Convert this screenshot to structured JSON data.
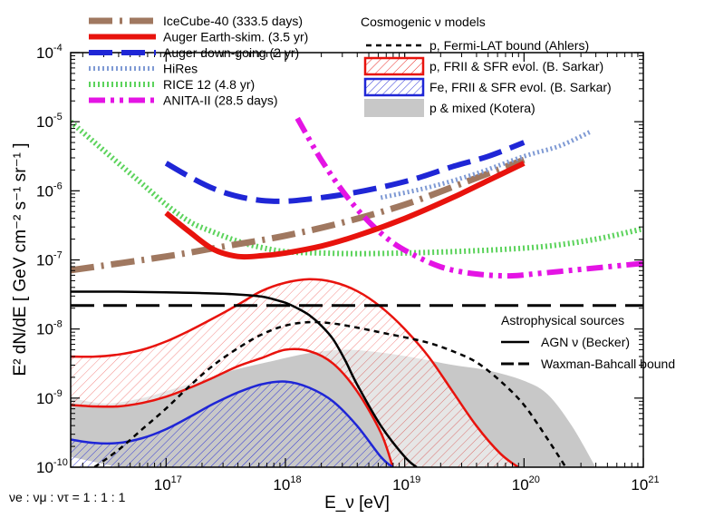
{
  "chart_data": {
    "type": "line",
    "title": "",
    "xlabel": "E_ν [eV]",
    "ylabel": "E² dN/dE  [ GeV cm⁻² s⁻¹ sr⁻¹ ]",
    "xscale": "log",
    "yscale": "log",
    "xlim_log10": [
      16.2,
      21.0
    ],
    "ylim_log10": [
      -10.0,
      -4.0
    ],
    "x_ticks": [
      {
        "exp": "17",
        "value_log10": 17
      },
      {
        "exp": "18",
        "value_log10": 18
      },
      {
        "exp": "19",
        "value_log10": 19
      },
      {
        "exp": "20",
        "value_log10": 20
      },
      {
        "exp": "21",
        "value_log10": 21
      }
    ],
    "y_ticks": [
      {
        "exp": "-10",
        "value_log10": -10
      },
      {
        "exp": "-9",
        "value_log10": -9
      },
      {
        "exp": "-8",
        "value_log10": -8
      },
      {
        "exp": "-7",
        "value_log10": -7
      },
      {
        "exp": "-6",
        "value_log10": -6
      },
      {
        "exp": "-5",
        "value_log10": -5
      },
      {
        "exp": "-4",
        "value_log10": -4
      }
    ],
    "tick_base": "10",
    "flavor_note": "νe : νμ : ντ = 1 : 1 : 1",
    "legend_headers": {
      "cosmogenic": "Cosmogenic ν models",
      "astrophysical": "Astrophysical sources"
    },
    "bands": [
      {
        "id": "kotera",
        "name": "p & mixed (Kotera)",
        "color": "#c8c8c8",
        "upper": {
          "log10_E": [
            16.2,
            16.5,
            16.8,
            17.0,
            17.3,
            17.6,
            17.9,
            18.2,
            18.5,
            18.8,
            19.1,
            19.4,
            19.7,
            20.0,
            20.2,
            20.4,
            20.6
          ],
          "log10_flux": [
            -9.0,
            -9.08,
            -9.0,
            -8.9,
            -8.74,
            -8.58,
            -8.46,
            -8.35,
            -8.3,
            -8.34,
            -8.42,
            -8.52,
            -8.6,
            -8.75,
            -8.95,
            -9.4,
            -10.0
          ]
        },
        "lower": {
          "log10_E": [
            16.2,
            16.6,
            17.0,
            17.4,
            17.8,
            18.2,
            18.5,
            18.8,
            19.1,
            19.3
          ],
          "log10_flux": [
            -9.85,
            -10.0,
            -10.0,
            -10.0,
            -10.0,
            -10.0,
            -10.0,
            -10.0,
            -10.0,
            -10.0
          ]
        }
      },
      {
        "id": "p-frii",
        "name": "p, FRII & SFR evol. (B. Sarkar)",
        "color": "#e8130d",
        "upper": {
          "log10_E": [
            16.2,
            16.4,
            16.6,
            16.8,
            17.0,
            17.2,
            17.4,
            17.6,
            17.8,
            18.0,
            18.2,
            18.4,
            18.6,
            18.8,
            19.0,
            19.2,
            19.4,
            19.6,
            19.8,
            19.95
          ],
          "log10_flux": [
            -8.4,
            -8.4,
            -8.37,
            -8.3,
            -8.18,
            -8.02,
            -7.84,
            -7.65,
            -7.45,
            -7.33,
            -7.28,
            -7.32,
            -7.45,
            -7.68,
            -8.0,
            -8.4,
            -8.9,
            -9.4,
            -9.8,
            -10.0
          ]
        },
        "lower": {
          "log10_E": [
            16.2,
            16.4,
            16.6,
            16.8,
            17.0,
            17.2,
            17.4,
            17.6,
            17.8,
            18.0,
            18.2,
            18.4,
            18.6,
            18.8,
            18.9
          ],
          "log10_flux": [
            -9.1,
            -9.12,
            -9.12,
            -9.07,
            -8.98,
            -8.85,
            -8.7,
            -8.54,
            -8.42,
            -8.3,
            -8.32,
            -8.5,
            -8.9,
            -9.5,
            -10.0
          ]
        }
      },
      {
        "id": "fe-frii",
        "name": "Fe, FRII & SFR evol. (B. Sarkar)",
        "color": "#1f26d6",
        "upper": {
          "log10_E": [
            16.2,
            16.4,
            16.6,
            16.8,
            17.0,
            17.2,
            17.4,
            17.6,
            17.8,
            18.0,
            18.2,
            18.4,
            18.6,
            18.8,
            18.9
          ],
          "log10_flux": [
            -9.6,
            -9.65,
            -9.65,
            -9.58,
            -9.45,
            -9.27,
            -9.08,
            -8.92,
            -8.8,
            -8.76,
            -8.85,
            -9.05,
            -9.4,
            -9.85,
            -10.0
          ]
        },
        "lower": {
          "log10_E": [
            16.2,
            18.9
          ],
          "log10_flux": [
            -10.0,
            -10.0
          ]
        }
      }
    ],
    "series": [
      {
        "id": "icecube40",
        "name": "IceCube-40 (333.5 days)",
        "color": "#a07860",
        "style": "dashdot",
        "width": 7,
        "log10_E": [
          16.2,
          17.0,
          17.5,
          18.0,
          18.5,
          19.0,
          19.5,
          20.0
        ],
        "log10_flux": [
          -7.15,
          -6.95,
          -6.8,
          -6.65,
          -6.45,
          -6.2,
          -5.88,
          -5.55
        ]
      },
      {
        "id": "auger-es",
        "name": "Auger Earth-skim. (3.5 yr)",
        "color": "#e8130d",
        "style": "solid",
        "width": 6,
        "log10_E": [
          17.0,
          17.2,
          17.4,
          17.6,
          17.8,
          18.0,
          18.3,
          18.6,
          19.0,
          19.4,
          19.7,
          20.0
        ],
        "log10_flux": [
          -6.32,
          -6.6,
          -6.85,
          -6.95,
          -6.94,
          -6.9,
          -6.8,
          -6.65,
          -6.4,
          -6.1,
          -5.85,
          -5.6
        ]
      },
      {
        "id": "auger-dg",
        "name": "Auger down-going (2 yr)",
        "color": "#1f26d6",
        "style": "longdash",
        "width": 6,
        "log10_E": [
          17.0,
          17.2,
          17.4,
          17.6,
          17.8,
          18.0,
          18.2,
          18.5,
          18.8,
          19.1,
          19.4,
          19.7,
          20.0
        ],
        "log10_flux": [
          -5.6,
          -5.8,
          -5.97,
          -6.08,
          -6.14,
          -6.15,
          -6.12,
          -6.05,
          -5.95,
          -5.82,
          -5.65,
          -5.5,
          -5.3
        ]
      },
      {
        "id": "hires",
        "name": "HiRes",
        "color": "#7f9ad4",
        "style": "dotted",
        "width": 5,
        "log10_E": [
          18.8,
          19.2,
          19.6,
          20.0,
          20.3,
          20.55
        ],
        "log10_flux": [
          -6.1,
          -5.95,
          -5.75,
          -5.5,
          -5.35,
          -5.15
        ]
      },
      {
        "id": "rice12",
        "name": "RICE 12 (4.8 yr)",
        "color": "#5cd35c",
        "style": "dotted",
        "width": 6,
        "log10_E": [
          16.2,
          16.4,
          16.6,
          16.8,
          17.0,
          17.2,
          17.4,
          17.6,
          17.8,
          18.0,
          18.3,
          18.6,
          19.0,
          19.4,
          19.8,
          20.2,
          20.6,
          21.0
        ],
        "log10_flux": [
          -5.0,
          -5.3,
          -5.6,
          -5.9,
          -6.2,
          -6.45,
          -6.6,
          -6.73,
          -6.82,
          -6.88,
          -6.9,
          -6.91,
          -6.9,
          -6.88,
          -6.85,
          -6.8,
          -6.7,
          -6.55
        ]
      },
      {
        "id": "anita2",
        "name": "ANITA-II (28.5 days)",
        "color": "#e414e4",
        "style": "dashdotdot",
        "width": 6,
        "log10_E": [
          18.1,
          18.3,
          18.5,
          18.7,
          18.9,
          19.1,
          19.3,
          19.5,
          19.7,
          19.9,
          20.1,
          20.4,
          20.7,
          21.0
        ],
        "log10_flux": [
          -4.95,
          -5.55,
          -6.05,
          -6.45,
          -6.75,
          -6.95,
          -7.1,
          -7.18,
          -7.22,
          -7.23,
          -7.2,
          -7.15,
          -7.1,
          -7.05
        ]
      },
      {
        "id": "ahlers",
        "name": "p, Fermi-LAT bound (Ahlers)",
        "color": "#000000",
        "style": "shortdash",
        "width": 2.5,
        "log10_E": [
          16.4,
          16.6,
          16.8,
          17.0,
          17.2,
          17.4,
          17.6,
          17.8,
          18.0,
          18.2,
          18.4,
          18.6,
          18.8,
          19.0,
          19.2,
          19.4,
          19.6,
          19.8,
          20.0,
          20.2,
          20.35
        ],
        "log10_flux": [
          -10.0,
          -9.75,
          -9.45,
          -9.15,
          -8.82,
          -8.52,
          -8.28,
          -8.08,
          -7.95,
          -7.9,
          -7.92,
          -7.98,
          -8.05,
          -8.12,
          -8.2,
          -8.32,
          -8.48,
          -8.75,
          -9.1,
          -9.6,
          -10.0
        ]
      },
      {
        "id": "agn-becker",
        "name": "AGN ν (Becker)",
        "color": "#000000",
        "style": "solid",
        "width": 2.5,
        "log10_E": [
          16.2,
          16.6,
          17.0,
          17.3,
          17.6,
          17.8,
          17.9,
          18.0,
          18.1,
          18.2,
          18.3,
          18.4,
          18.5,
          18.6,
          18.8,
          19.0,
          19.1
        ],
        "log10_flux": [
          -7.46,
          -7.46,
          -7.47,
          -7.48,
          -7.5,
          -7.53,
          -7.57,
          -7.62,
          -7.7,
          -7.8,
          -7.95,
          -8.15,
          -8.45,
          -8.8,
          -9.4,
          -9.85,
          -10.0
        ]
      },
      {
        "id": "waxman-bahcall",
        "name": "Waxman-Bahcall bound",
        "color": "#000000",
        "style": "longdash",
        "width": 3,
        "log10_E": [
          16.2,
          21.0
        ],
        "log10_flux": [
          -7.66,
          -7.66
        ]
      }
    ],
    "legend_cr_series": [
      "icecube40",
      "auger-es",
      "auger-dg",
      "hires",
      "rice12",
      "anita2"
    ],
    "legend_cosmogenic_entries": [
      "ahlers",
      "p-frii",
      "fe-frii",
      "kotera"
    ],
    "legend_astro_entries": [
      "agn-becker",
      "waxman-bahcall"
    ]
  }
}
